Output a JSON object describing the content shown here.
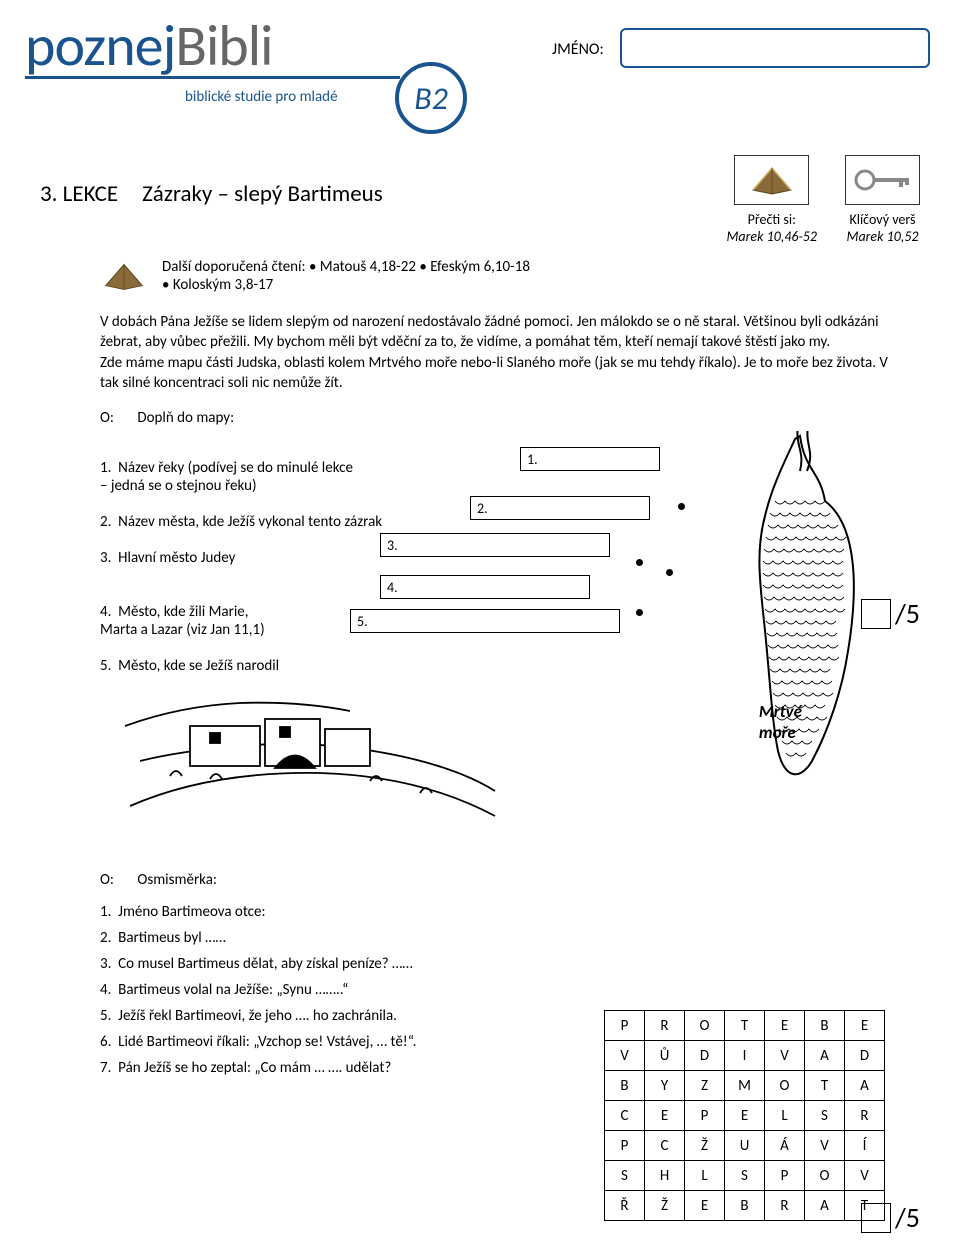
{
  "header": {
    "logo_part1": "poznej",
    "logo_part2": "Bibli",
    "subtitle": "biblické studie pro mladé",
    "level_badge": "B2",
    "name_label": "JMÉNO:"
  },
  "lesson": {
    "number": "3. LEKCE",
    "title": "Zázraky – slepý Bartimeus"
  },
  "refs": {
    "read_label": "Přečti si:",
    "read_value": "Marek 10,46-52",
    "key_label": "Klíčový verš",
    "key_value": "Marek 10,52"
  },
  "readings": {
    "label": "Další doporučená čtení:",
    "items": "• Matouš 4,18-22 • Efeským 6,10-18\n• Koloským 3,8-17"
  },
  "paragraph": "V dobách Pána Ježíše se lidem slepým od narození nedostávalo žádné pomoci. Jen málokdo se o ně staral. Většinou byli odkázáni žebrat, aby vůbec přežili. My bychom měli být vděční za to, že vidíme, a pomáhat těm, kteří nemají takové štěstí jako my.\nZde máme mapu části Judska, oblasti kolem Mrtvého moře nebo-li Slaného moře (jak se mu tehdy říkalo). Je to moře bez života. V tak silné koncentraci soli nic nemůže žít.",
  "task1": {
    "label": "O:",
    "text": "Doplň do mapy:"
  },
  "map": {
    "items": [
      "Název řeky (podívej se do minulé lekce\n                              – jedná se o stejnou řeku)",
      "Název města, kde Ježíš vykonal tento zázrak",
      "Hlavní město Judey",
      "Město, kde žili Marie,\nMarta a Lazar (viz Jan 11,1)",
      "Město, kde se Ježíš narodil"
    ],
    "answer_nums": [
      "1.",
      "2.",
      "3.",
      "4.",
      "5."
    ],
    "sea_label": "Mrtvé\nmoře",
    "score_denom": "/5"
  },
  "task2": {
    "label": "O:",
    "text": "Osmisměrka:"
  },
  "wordsearch": {
    "items": [
      "Jméno Bartimeova otce:",
      "Bartimeus byl ……",
      "Co musel Bartimeus dělat, aby získal peníze? ……",
      "Bartimeus volal na Ježíše: „Synu ……..“",
      "Ježíš řekl Bartimeovi, že jeho …. ho zachránila.",
      "Lidé Bartimeovi říkali: „Vzchop se! Vstávej, … tě!“.",
      "Pán Ježíš se ho zeptal: „Co mám … …. udělat?"
    ],
    "grid": [
      [
        "P",
        "R",
        "O",
        "T",
        "E",
        "B",
        "E"
      ],
      [
        "V",
        "Ů",
        "D",
        "I",
        "V",
        "A",
        "D"
      ],
      [
        "B",
        "Y",
        "Z",
        "M",
        "O",
        "T",
        "A"
      ],
      [
        "C",
        "E",
        "P",
        "E",
        "L",
        "S",
        "R"
      ],
      [
        "P",
        "C",
        "Ž",
        "U",
        "Á",
        "V",
        "Í"
      ],
      [
        "S",
        "H",
        "L",
        "S",
        "P",
        "O",
        "V"
      ],
      [
        "Ř",
        "Ž",
        "E",
        "B",
        "R",
        "A",
        "T"
      ]
    ],
    "score_denom": "/5"
  },
  "style": {
    "accent_color": "#1a5490",
    "text_color": "#000000",
    "bg_color": "#ffffff"
  }
}
